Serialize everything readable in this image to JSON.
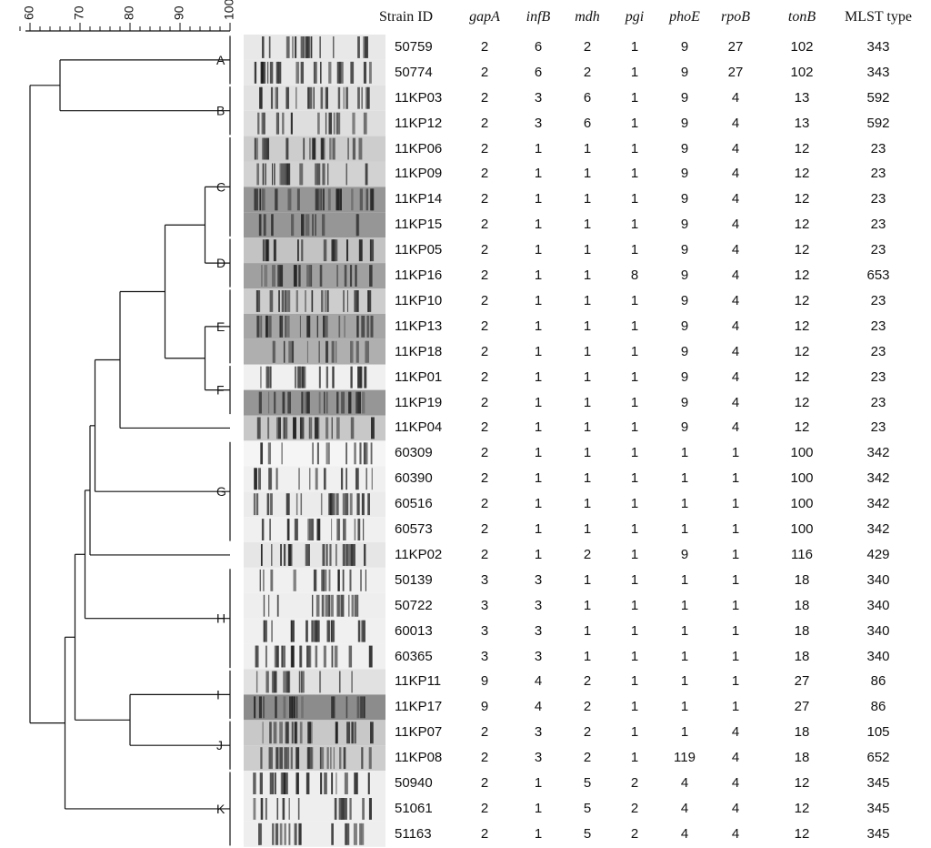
{
  "dendrogram": {
    "scale_ticks": [
      "60",
      "70",
      "80",
      "90",
      "100"
    ],
    "cluster_labels": [
      "A",
      "B",
      "C",
      "D",
      "E",
      "F",
      "G",
      "H",
      "I",
      "J",
      "K"
    ]
  },
  "table": {
    "headers": [
      "Strain ID",
      "gapA",
      "infB",
      "mdh",
      "pgi",
      "phoE",
      "rpoB",
      "tonB",
      "MLST type"
    ],
    "rows": [
      [
        "50759",
        "2",
        "6",
        "2",
        "1",
        "9",
        "27",
        "102",
        "343"
      ],
      [
        "50774",
        "2",
        "6",
        "2",
        "1",
        "9",
        "27",
        "102",
        "343"
      ],
      [
        "11KP03",
        "2",
        "3",
        "6",
        "1",
        "9",
        "4",
        "13",
        "592"
      ],
      [
        "11KP12",
        "2",
        "3",
        "6",
        "1",
        "9",
        "4",
        "13",
        "592"
      ],
      [
        "11KP06",
        "2",
        "1",
        "1",
        "1",
        "9",
        "4",
        "12",
        "23"
      ],
      [
        "11KP09",
        "2",
        "1",
        "1",
        "1",
        "9",
        "4",
        "12",
        "23"
      ],
      [
        "11KP14",
        "2",
        "1",
        "1",
        "1",
        "9",
        "4",
        "12",
        "23"
      ],
      [
        "11KP15",
        "2",
        "1",
        "1",
        "1",
        "9",
        "4",
        "12",
        "23"
      ],
      [
        "11KP05",
        "2",
        "1",
        "1",
        "1",
        "9",
        "4",
        "12",
        "23"
      ],
      [
        "11KP16",
        "2",
        "1",
        "1",
        "8",
        "9",
        "4",
        "12",
        "653"
      ],
      [
        "11KP10",
        "2",
        "1",
        "1",
        "1",
        "9",
        "4",
        "12",
        "23"
      ],
      [
        "11KP13",
        "2",
        "1",
        "1",
        "1",
        "9",
        "4",
        "12",
        "23"
      ],
      [
        "11KP18",
        "2",
        "1",
        "1",
        "1",
        "9",
        "4",
        "12",
        "23"
      ],
      [
        "11KP01",
        "2",
        "1",
        "1",
        "1",
        "9",
        "4",
        "12",
        "23"
      ],
      [
        "11KP19",
        "2",
        "1",
        "1",
        "1",
        "9",
        "4",
        "12",
        "23"
      ],
      [
        "11KP04",
        "2",
        "1",
        "1",
        "1",
        "9",
        "4",
        "12",
        "23"
      ],
      [
        "60309",
        "2",
        "1",
        "1",
        "1",
        "1",
        "1",
        "100",
        "342"
      ],
      [
        "60390",
        "2",
        "1",
        "1",
        "1",
        "1",
        "1",
        "100",
        "342"
      ],
      [
        "60516",
        "2",
        "1",
        "1",
        "1",
        "1",
        "1",
        "100",
        "342"
      ],
      [
        "60573",
        "2",
        "1",
        "1",
        "1",
        "1",
        "1",
        "100",
        "342"
      ],
      [
        "11KP02",
        "2",
        "1",
        "2",
        "1",
        "9",
        "1",
        "116",
        "429"
      ],
      [
        "50139",
        "3",
        "3",
        "1",
        "1",
        "1",
        "1",
        "18",
        "340"
      ],
      [
        "50722",
        "3",
        "3",
        "1",
        "1",
        "1",
        "1",
        "18",
        "340"
      ],
      [
        "60013",
        "3",
        "3",
        "1",
        "1",
        "1",
        "1",
        "18",
        "340"
      ],
      [
        "60365",
        "3",
        "3",
        "1",
        "1",
        "1",
        "1",
        "18",
        "340"
      ],
      [
        "11KP11",
        "9",
        "4",
        "2",
        "1",
        "1",
        "1",
        "27",
        "86"
      ],
      [
        "11KP17",
        "9",
        "4",
        "2",
        "1",
        "1",
        "1",
        "27",
        "86"
      ],
      [
        "11KP07",
        "2",
        "3",
        "2",
        "1",
        "1",
        "4",
        "18",
        "105"
      ],
      [
        "11KP08",
        "2",
        "3",
        "2",
        "1",
        "119",
        "4",
        "18",
        "652"
      ],
      [
        "50940",
        "2",
        "1",
        "5",
        "2",
        "4",
        "4",
        "12",
        "345"
      ],
      [
        "51061",
        "2",
        "1",
        "5",
        "2",
        "4",
        "4",
        "12",
        "345"
      ],
      [
        "51163",
        "2",
        "1",
        "5",
        "2",
        "4",
        "4",
        "12",
        "345"
      ]
    ]
  }
}
